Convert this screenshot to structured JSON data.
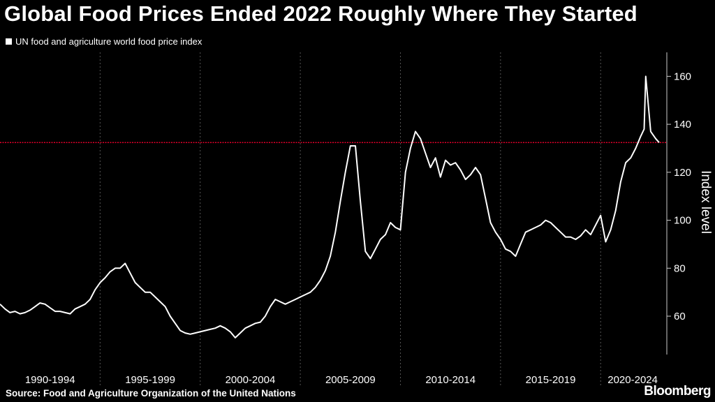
{
  "title": "Global Food Prices Ended 2022 Roughly Where They Started",
  "legend_label": "UN food and agriculture world food price index",
  "source": "Source: Food and Agriculture Organization of the United Nations",
  "brand": "Bloomberg",
  "colors": {
    "background": "#000000",
    "line": "#ffffff",
    "reference": "#e0002a",
    "grid": "#555555"
  },
  "chart_data": {
    "type": "line",
    "title": "Global Food Prices Ended 2022 Roughly Where They Started",
    "ylabel": "Index level",
    "xlabel": "",
    "ylim": [
      44,
      170
    ],
    "xlim": [
      1990,
      2023.2
    ],
    "grid": "vertical dotted",
    "y_axis_side": "right",
    "y_ticks": [
      60,
      80,
      100,
      120,
      140,
      160
    ],
    "x_tick_labels": [
      "1990-1994",
      "1995-1999",
      "2000-2004",
      "2005-2009",
      "2010-2014",
      "2015-2019",
      "2020-2024"
    ],
    "reference_line": {
      "y": 132.4,
      "label": ""
    },
    "series": [
      {
        "name": "UN food and agriculture world food price index",
        "x": [
          1990.0,
          1990.25,
          1990.5,
          1990.75,
          1991.0,
          1991.25,
          1991.5,
          1991.75,
          1992.0,
          1992.25,
          1992.5,
          1992.75,
          1993.0,
          1993.25,
          1993.5,
          1993.75,
          1994.0,
          1994.25,
          1994.5,
          1994.75,
          1995.0,
          1995.25,
          1995.5,
          1995.75,
          1996.0,
          1996.25,
          1996.5,
          1996.75,
          1997.0,
          1997.25,
          1997.5,
          1997.75,
          1998.0,
          1998.25,
          1998.5,
          1998.75,
          1999.0,
          1999.25,
          1999.5,
          1999.75,
          2000.0,
          2000.25,
          2000.5,
          2000.75,
          2001.0,
          2001.25,
          2001.5,
          2001.75,
          2002.0,
          2002.25,
          2002.5,
          2002.75,
          2003.0,
          2003.25,
          2003.5,
          2003.75,
          2004.0,
          2004.25,
          2004.5,
          2004.75,
          2005.0,
          2005.25,
          2005.5,
          2005.75,
          2006.0,
          2006.25,
          2006.5,
          2006.75,
          2007.0,
          2007.25,
          2007.5,
          2007.75,
          2008.0,
          2008.25,
          2008.5,
          2008.75,
          2009.0,
          2009.25,
          2009.5,
          2009.75,
          2010.0,
          2010.25,
          2010.5,
          2010.75,
          2011.0,
          2011.25,
          2011.5,
          2011.75,
          2012.0,
          2012.25,
          2012.5,
          2012.75,
          2013.0,
          2013.25,
          2013.5,
          2013.75,
          2014.0,
          2014.25,
          2014.5,
          2014.75,
          2015.0,
          2015.25,
          2015.5,
          2015.75,
          2016.0,
          2016.25,
          2016.5,
          2016.75,
          2017.0,
          2017.25,
          2017.5,
          2017.75,
          2018.0,
          2018.25,
          2018.5,
          2018.75,
          2019.0,
          2019.25,
          2019.5,
          2019.75,
          2020.0,
          2020.25,
          2020.5,
          2020.75,
          2021.0,
          2021.25,
          2021.5,
          2021.75,
          2022.0,
          2022.17,
          2022.25,
          2022.5,
          2022.75,
          2022.92
        ],
        "values": [
          65,
          63,
          61.5,
          62,
          61,
          61.5,
          62.5,
          64,
          65.5,
          65,
          63.5,
          62,
          62,
          61.5,
          61,
          63,
          64,
          65,
          67,
          71,
          74,
          76,
          78.5,
          80,
          80,
          82,
          78,
          74,
          72,
          70,
          70,
          68,
          66,
          64,
          60,
          57,
          54,
          53,
          52.5,
          53,
          53.5,
          54,
          54.5,
          55,
          56,
          55,
          53.5,
          51,
          53,
          55,
          56,
          57,
          57.5,
          60,
          64,
          67,
          66,
          65,
          66,
          67,
          68,
          69,
          70,
          72,
          75,
          79,
          85,
          95,
          108,
          120,
          131,
          131,
          108,
          87,
          84,
          88,
          92,
          94,
          99,
          97,
          96,
          120,
          130,
          137,
          134,
          128,
          122,
          126,
          118,
          125,
          123,
          124,
          121,
          117,
          119,
          122,
          119,
          109,
          99,
          95,
          92,
          88,
          87,
          85,
          90,
          95,
          96,
          97,
          98,
          100,
          99,
          97,
          95,
          93,
          93,
          92,
          93.5,
          96,
          94,
          98,
          102,
          91,
          96,
          104,
          116,
          124,
          126,
          130,
          135,
          138,
          160,
          137,
          134,
          132.4
        ]
      }
    ]
  }
}
